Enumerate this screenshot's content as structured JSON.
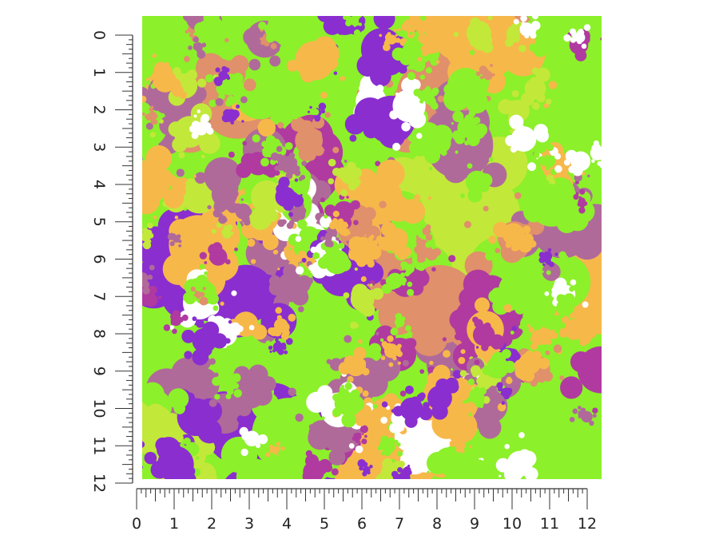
{
  "product": {
    "pattern_colors": {
      "lime": "#8cf02a",
      "yellow_green": "#c2e83a",
      "purple": "#8a2ecf",
      "magenta": "#b03aa0",
      "mauve": "#b06a9a",
      "orange": "#f7b84a",
      "salmon": "#e0906a",
      "white": "#ffffff"
    }
  },
  "ruler": {
    "vertical_labels": [
      "0",
      "1",
      "2",
      "3",
      "4",
      "5",
      "6",
      "7",
      "8",
      "9",
      "10",
      "11",
      "12"
    ],
    "horizontal_labels": [
      "0",
      "1",
      "2",
      "3",
      "4",
      "5",
      "6",
      "7",
      "8",
      "9",
      "10",
      "11",
      "12"
    ],
    "line_color": "#333333"
  }
}
